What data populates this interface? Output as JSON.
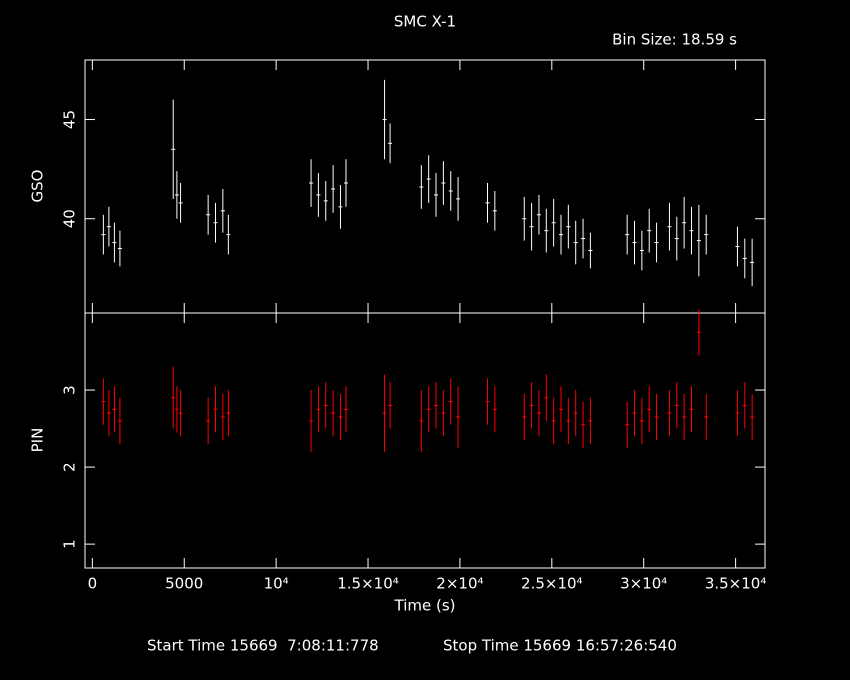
{
  "chart_data": [
    {
      "type": "errorbar",
      "title": "SMC X-1",
      "subtitle": "Bin Size: 18.59 s",
      "ylabel": "GSO",
      "color": "#ffffff",
      "x": [
        600,
        900,
        1200,
        1500,
        4400,
        4600,
        4800,
        6300,
        6700,
        7100,
        7400,
        11900,
        12300,
        12700,
        13100,
        13500,
        13800,
        15900,
        16200,
        17900,
        18300,
        18700,
        19100,
        19500,
        19900,
        21500,
        21900,
        23500,
        23900,
        24300,
        24700,
        25100,
        25500,
        25900,
        26300,
        26700,
        27100,
        29100,
        29500,
        29900,
        30300,
        30700,
        31400,
        31800,
        32200,
        32600,
        33000,
        33400,
        35100,
        35500,
        35900
      ],
      "values": [
        39.2,
        39.6,
        38.8,
        38.5,
        43.5,
        41.2,
        40.8,
        40.2,
        39.8,
        40.4,
        39.2,
        41.8,
        41.2,
        40.9,
        41.5,
        40.6,
        41.8,
        45.0,
        43.8,
        41.6,
        42.0,
        41.2,
        41.8,
        41.4,
        41.0,
        40.8,
        40.4,
        40.0,
        39.6,
        40.2,
        39.4,
        39.8,
        39.2,
        39.6,
        38.8,
        39.0,
        38.4,
        39.2,
        38.8,
        38.4,
        39.4,
        38.8,
        39.6,
        39.0,
        39.8,
        39.4,
        38.9,
        39.2,
        38.6,
        38.0,
        37.8
      ],
      "errors": [
        1.0,
        1.0,
        1.0,
        0.9,
        2.5,
        1.2,
        1.0,
        1.0,
        1.0,
        1.1,
        1.0,
        1.2,
        1.1,
        1.0,
        1.2,
        1.1,
        1.2,
        2.0,
        1.0,
        1.1,
        1.2,
        1.1,
        1.1,
        1.0,
        1.1,
        1.0,
        1.0,
        1.1,
        1.2,
        1.0,
        1.1,
        1.2,
        1.0,
        1.1,
        1.1,
        1.0,
        0.9,
        1.0,
        1.1,
        1.0,
        1.1,
        1.0,
        1.2,
        1.1,
        1.3,
        1.2,
        1.8,
        1.0,
        1.0,
        1.0,
        1.2
      ],
      "ylim": [
        35.25,
        48.0
      ],
      "yticks": [
        40,
        45
      ]
    },
    {
      "type": "errorbar",
      "ylabel": "PIN",
      "xlabel": "Time (s)",
      "color": "#ff0000",
      "x": [
        600,
        900,
        1200,
        1500,
        4400,
        4600,
        4800,
        6300,
        6700,
        7100,
        7400,
        11900,
        12300,
        12700,
        13100,
        13500,
        13800,
        15900,
        16200,
        17900,
        18300,
        18700,
        19100,
        19500,
        19900,
        21500,
        21900,
        23500,
        23900,
        24300,
        24700,
        25100,
        25500,
        25900,
        26300,
        26700,
        27100,
        29100,
        29500,
        29900,
        30300,
        30700,
        31400,
        31800,
        32200,
        32600,
        33000,
        33400,
        35100,
        35500,
        35900
      ],
      "values": [
        2.85,
        2.7,
        2.75,
        2.6,
        2.9,
        2.75,
        2.7,
        2.6,
        2.75,
        2.65,
        2.7,
        2.6,
        2.75,
        2.8,
        2.7,
        2.65,
        2.75,
        2.7,
        2.8,
        2.6,
        2.75,
        2.8,
        2.7,
        2.85,
        2.65,
        2.85,
        2.75,
        2.65,
        2.8,
        2.7,
        2.9,
        2.6,
        2.75,
        2.6,
        2.7,
        2.55,
        2.6,
        2.55,
        2.7,
        2.6,
        2.75,
        2.65,
        2.7,
        2.8,
        2.65,
        2.75,
        3.75,
        2.65,
        2.7,
        2.8,
        2.65
      ],
      "errors": [
        0.3,
        0.3,
        0.3,
        0.3,
        0.4,
        0.3,
        0.3,
        0.3,
        0.3,
        0.3,
        0.3,
        0.4,
        0.3,
        0.3,
        0.3,
        0.3,
        0.3,
        0.5,
        0.3,
        0.4,
        0.3,
        0.3,
        0.3,
        0.3,
        0.4,
        0.3,
        0.3,
        0.3,
        0.3,
        0.3,
        0.3,
        0.3,
        0.3,
        0.3,
        0.3,
        0.3,
        0.3,
        0.3,
        0.3,
        0.3,
        0.3,
        0.3,
        0.3,
        0.3,
        0.3,
        0.3,
        0.3,
        0.3,
        0.3,
        0.3,
        0.3
      ],
      "xlim": [
        -400,
        36600
      ],
      "ylim": [
        0.69,
        4.0
      ],
      "yticks": [
        1,
        2,
        3
      ],
      "xticks": [
        0,
        5000,
        {
          "value": 10000,
          "label": "10⁴"
        },
        {
          "value": 15000,
          "label": "1.5×10⁴"
        },
        {
          "value": 20000,
          "label": "2×10⁴"
        },
        {
          "value": 25000,
          "label": "2.5×10⁴"
        },
        {
          "value": 30000,
          "label": "3×10⁴"
        },
        {
          "value": 35000,
          "label": "3.5×10⁴"
        }
      ]
    }
  ],
  "footer": {
    "start": "Start Time 15669  7:08:11:778",
    "stop": "Stop Time 15669 16:57:26:540"
  }
}
